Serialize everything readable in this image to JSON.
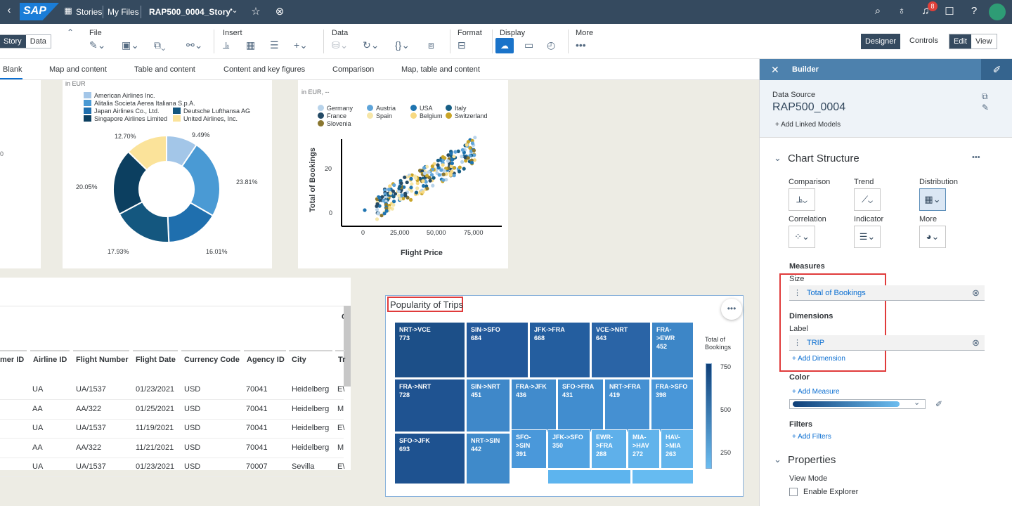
{
  "shell": {
    "stories": "Stories",
    "my_files": "My Files",
    "story_name": "RAP500_0004_Story",
    "badge": "8"
  },
  "toolbar": {
    "story": "Story",
    "data": "Data",
    "file": "File",
    "insert": "Insert",
    "data_grp": "Data",
    "format": "Format",
    "display": "Display",
    "more": "More",
    "designer": "Designer",
    "controls": "Controls",
    "edit": "Edit",
    "view": "View"
  },
  "templates": [
    "Blank",
    "Map and content",
    "Table and content",
    "Content and key figures",
    "Comparison",
    "Map, table and content"
  ],
  "donut": {
    "subtitle": "in EUR",
    "legend": [
      "American Airlines Inc.",
      "Alitalia Societa Aerea Italiana S.p.A.",
      "Japan Airlines Co., Ltd.",
      "Deutsche Lufthansa AG",
      "Singapore Airlines Limited",
      "United Airlines, Inc."
    ],
    "labels": [
      "9.49%",
      "23.81%",
      "16.01%",
      "17.93%",
      "20.05%",
      "12.70%"
    ],
    "left_edge": "0"
  },
  "scatter": {
    "subtitle": "in EUR, --",
    "legend": [
      "Germany",
      "Austria",
      "USA",
      "Italy",
      "France",
      "Spain",
      "Belgium",
      "Switzerland",
      "Slovenia"
    ],
    "ylabel": "Total of Bookings",
    "xlabel": "Flight Price",
    "yticks": [
      "20",
      "0"
    ],
    "xticks": [
      "0",
      "25,000",
      "50,000",
      "75,000"
    ]
  },
  "table": {
    "headers": [
      "mer ID",
      "Airline ID",
      "Flight Number",
      "Flight Date",
      "Currency Code",
      "Agency ID",
      "City",
      "Tr"
    ],
    "extra_header": "C",
    "rows": [
      [
        "UA",
        "UA/1537",
        "01/23/2021",
        "USD",
        "70041",
        "Heidelberg",
        "E\\"
      ],
      [
        "AA",
        "AA/322",
        "01/25/2021",
        "USD",
        "70041",
        "Heidelberg",
        "M"
      ],
      [
        "UA",
        "UA/1537",
        "11/19/2021",
        "USD",
        "70041",
        "Heidelberg",
        "E\\"
      ],
      [
        "AA",
        "AA/322",
        "11/21/2021",
        "USD",
        "70041",
        "Heidelberg",
        "M"
      ],
      [
        "UA",
        "UA/1537",
        "01/23/2021",
        "USD",
        "70007",
        "Sevilla",
        "E\\"
      ]
    ]
  },
  "treemap": {
    "title": "Popularity of Trips",
    "legend_title": "Total of Bookings",
    "legend_ticks": [
      "750",
      "500",
      "250"
    ],
    "cells": [
      [
        "NRT->VCE",
        "773"
      ],
      [
        "SIN->SFO",
        "684"
      ],
      [
        "JFK->FRA",
        "668"
      ],
      [
        "VCE->NRT",
        "643"
      ],
      [
        "FRA->EWR",
        "452"
      ],
      [
        "FRA->NRT",
        "728"
      ],
      [
        "SIN->NRT",
        "451"
      ],
      [
        "FRA->JFK",
        "436"
      ],
      [
        "SFO->FRA",
        "431"
      ],
      [
        "NRT->FRA",
        "419"
      ],
      [
        "FRA->SFO",
        "398"
      ],
      [
        "SFO->JFK",
        "693"
      ],
      [
        "NRT->SIN",
        "442"
      ],
      [
        "SFO->SIN",
        "391"
      ],
      [
        "JFK->SFO",
        "350"
      ],
      [
        "EWR->FRA",
        "288"
      ],
      [
        "MIA->HAV",
        "272"
      ],
      [
        "HAV->MIA",
        "263"
      ]
    ]
  },
  "builder": {
    "title": "Builder",
    "ds_label": "Data Source",
    "ds_name": "RAP500_0004",
    "add_linked": "Add Linked Models",
    "chart_structure": "Chart Structure",
    "types": [
      "Comparison",
      "Trend",
      "Distribution",
      "Correlation",
      "Indicator",
      "More"
    ],
    "measures": "Measures",
    "size": "Size",
    "total_bookings": "Total of Bookings",
    "dimensions": "Dimensions",
    "label": "Label",
    "trip": "TRIP",
    "add_dimension": "Add Dimension",
    "color": "Color",
    "add_measure": "Add Measure",
    "filters": "Filters",
    "add_filters": "Add Filters",
    "properties": "Properties",
    "view_mode": "View Mode",
    "enable_explorer": "Enable Explorer"
  }
}
